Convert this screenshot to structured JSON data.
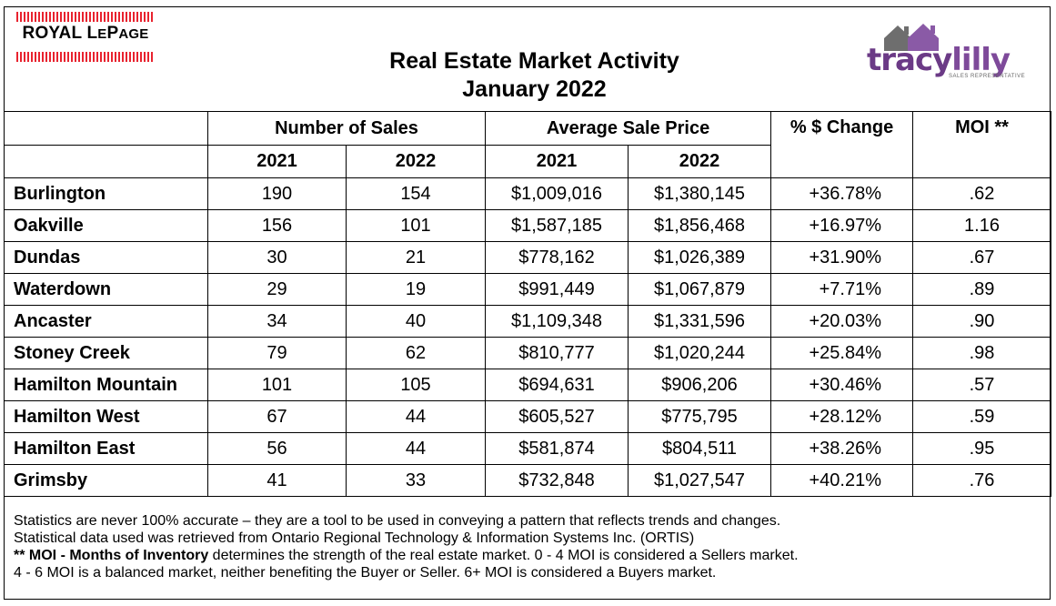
{
  "header": {
    "rlp_logo": {
      "word1": "ROYAL",
      "word2_big": "L",
      "word2_small": "E",
      "word3_big": "P",
      "word3_small": "AGE"
    },
    "title_line1": "Real Estate Market Activity",
    "title_line2": "January 2022",
    "tl_logo": {
      "part1": "tracy",
      "part2": "lilly",
      "tagline": "SALES REPRESENTATIVE",
      "house_color": "#6e6e6e",
      "brand_color": "#6b3a86"
    }
  },
  "table": {
    "group_headers": {
      "sales": "Number of Sales",
      "price": "Average Sale Price",
      "change": "% $ Change",
      "moi": "MOI **"
    },
    "year_headers": {
      "y1": "2021",
      "y2": "2022",
      "y3": "2021",
      "y4": "2022"
    },
    "rows": [
      {
        "city": "Burlington",
        "sales2021": "190",
        "sales2022": "154",
        "price2021": "$1,009,016",
        "price2022": "$1,380,145",
        "change": "+36.78%",
        "moi": ".62"
      },
      {
        "city": "Oakville",
        "sales2021": "156",
        "sales2022": "101",
        "price2021": "$1,587,185",
        "price2022": "$1,856,468",
        "change": "+16.97%",
        "moi": "1.16"
      },
      {
        "city": "Dundas",
        "sales2021": "30",
        "sales2022": "21",
        "price2021": "$778,162",
        "price2022": "$1,026,389",
        "change": "+31.90%",
        "moi": ".67"
      },
      {
        "city": "Waterdown",
        "sales2021": "29",
        "sales2022": "19",
        "price2021": "$991,449",
        "price2022": "$1,067,879",
        "change": "+7.71%",
        "moi": ".89"
      },
      {
        "city": "Ancaster",
        "sales2021": "34",
        "sales2022": "40",
        "price2021": "$1,109,348",
        "price2022": "$1,331,596",
        "change": "+20.03%",
        "moi": ".90"
      },
      {
        "city": "Stoney Creek",
        "sales2021": "79",
        "sales2022": "62",
        "price2021": "$810,777",
        "price2022": "$1,020,244",
        "change": "+25.84%",
        "moi": ".98"
      },
      {
        "city": "Hamilton Mountain",
        "sales2021": "101",
        "sales2022": "105",
        "price2021": "$694,631",
        "price2022": "$906,206",
        "change": "+30.46%",
        "moi": ".57"
      },
      {
        "city": "Hamilton West",
        "sales2021": "67",
        "sales2022": "44",
        "price2021": "$605,527",
        "price2022": "$775,795",
        "change": "+28.12%",
        "moi": ".59"
      },
      {
        "city": "Hamilton East",
        "sales2021": "56",
        "sales2022": "44",
        "price2021": "$581,874",
        "price2022": "$804,511",
        "change": "+38.26%",
        "moi": ".95"
      },
      {
        "city": "Grimsby",
        "sales2021": "41",
        "sales2022": "33",
        "price2021": "$732,848",
        "price2022": "$1,027,547",
        "change": "+40.21%",
        "moi": ".76"
      }
    ]
  },
  "notes": {
    "line1": "Statistics are never 100% accurate – they are a tool to be used in conveying a pattern that reflects trends and changes.",
    "line2": "Statistical data used was retrieved from Ontario Regional Technology & Information Systems Inc. (ORTIS)",
    "line3_bold": "** MOI - Months of Inventory",
    "line3_rest": " determines the strength of the real estate market. 0 - 4 MOI is considered a Sellers market.",
    "line4": "4 - 6 MOI is a balanced market, neither benefiting the Buyer or Seller. 6+ MOI is considered a Buyers market."
  }
}
